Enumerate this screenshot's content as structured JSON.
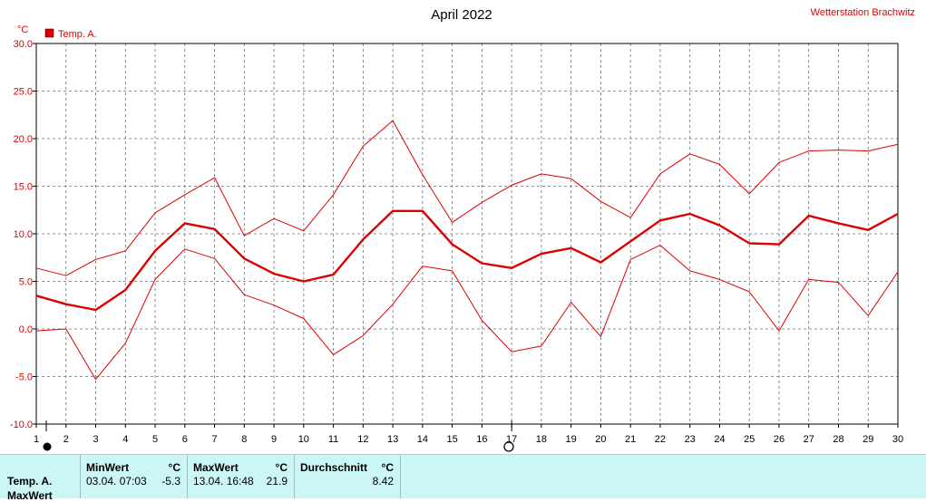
{
  "chart_data": {
    "type": "line",
    "title": "April 2022",
    "station": "Wetterstation Brachwitz",
    "yunit": "°C",
    "ylim": [
      -10,
      30
    ],
    "ytick_labels": [
      "30.0",
      "25.0",
      "20.0",
      "15.0",
      "10.0",
      "5.0",
      "0.0",
      "-5.0",
      "-10.0"
    ],
    "x": [
      1,
      2,
      3,
      4,
      5,
      6,
      7,
      8,
      9,
      10,
      11,
      12,
      13,
      14,
      15,
      16,
      17,
      18,
      19,
      20,
      21,
      22,
      23,
      24,
      25,
      26,
      27,
      28,
      29,
      30
    ],
    "x_tick_labels": [
      "1",
      "2",
      "3",
      "4",
      "5",
      "6",
      "7",
      "8",
      "9",
      "10",
      "11",
      "12",
      "13",
      "14",
      "15",
      "16",
      "17",
      "18",
      "19",
      "20",
      "21",
      "22",
      "23",
      "24",
      "25",
      "26",
      "27",
      "28",
      "29",
      "30"
    ],
    "legend": {
      "label": "Temp. A.",
      "placement": "top-left",
      "color": "#dd0000"
    },
    "grid": true,
    "series": [
      {
        "name": "Temp. A.",
        "role": "max",
        "color": "#dd0000",
        "values": [
          6.4,
          5.6,
          7.3,
          8.2,
          12.2,
          14.1,
          15.9,
          9.8,
          11.6,
          10.3,
          14.1,
          19.2,
          21.9,
          16.2,
          11.2,
          13.3,
          15.1,
          16.3,
          15.8,
          13.4,
          11.7,
          16.3,
          18.4,
          17.3,
          14.2,
          17.5,
          18.7,
          18.8,
          18.7,
          19.4
        ]
      },
      {
        "name": "Temp. A.",
        "role": "avg",
        "color": "#dd0000",
        "values": [
          3.5,
          2.6,
          2.0,
          4.1,
          8.2,
          11.1,
          10.5,
          7.4,
          5.8,
          5.0,
          5.7,
          9.4,
          12.4,
          12.4,
          8.9,
          6.9,
          6.4,
          7.9,
          8.5,
          7.0,
          9.2,
          11.4,
          12.1,
          10.9,
          9.0,
          8.9,
          11.9,
          11.1,
          10.4,
          12.1
        ]
      },
      {
        "name": "Temp. A.",
        "role": "min",
        "color": "#dd0000",
        "values": [
          -0.2,
          0.0,
          -5.3,
          -1.5,
          5.2,
          8.4,
          7.4,
          3.6,
          2.5,
          1.1,
          -2.7,
          -0.7,
          2.6,
          6.6,
          6.1,
          0.9,
          -2.4,
          -1.8,
          2.8,
          -0.8,
          7.3,
          8.8,
          6.1,
          5.2,
          3.9,
          -0.2,
          5.2,
          4.9,
          1.4,
          6.0
        ]
      }
    ]
  },
  "stats": {
    "row_label_1": "Temp. A.",
    "row_label_2": "MaxWert",
    "min_header": "MinWert",
    "min_unit": "°C",
    "min_date": "03.04.  07:03",
    "min_value": "-5.3",
    "max_header": "MaxWert",
    "max_unit": "°C",
    "max_date": "13.04.  16:48",
    "max_value": "21.9",
    "avg_header": "Durchschnitt",
    "avg_unit": "°C",
    "avg_value": "8.42"
  }
}
